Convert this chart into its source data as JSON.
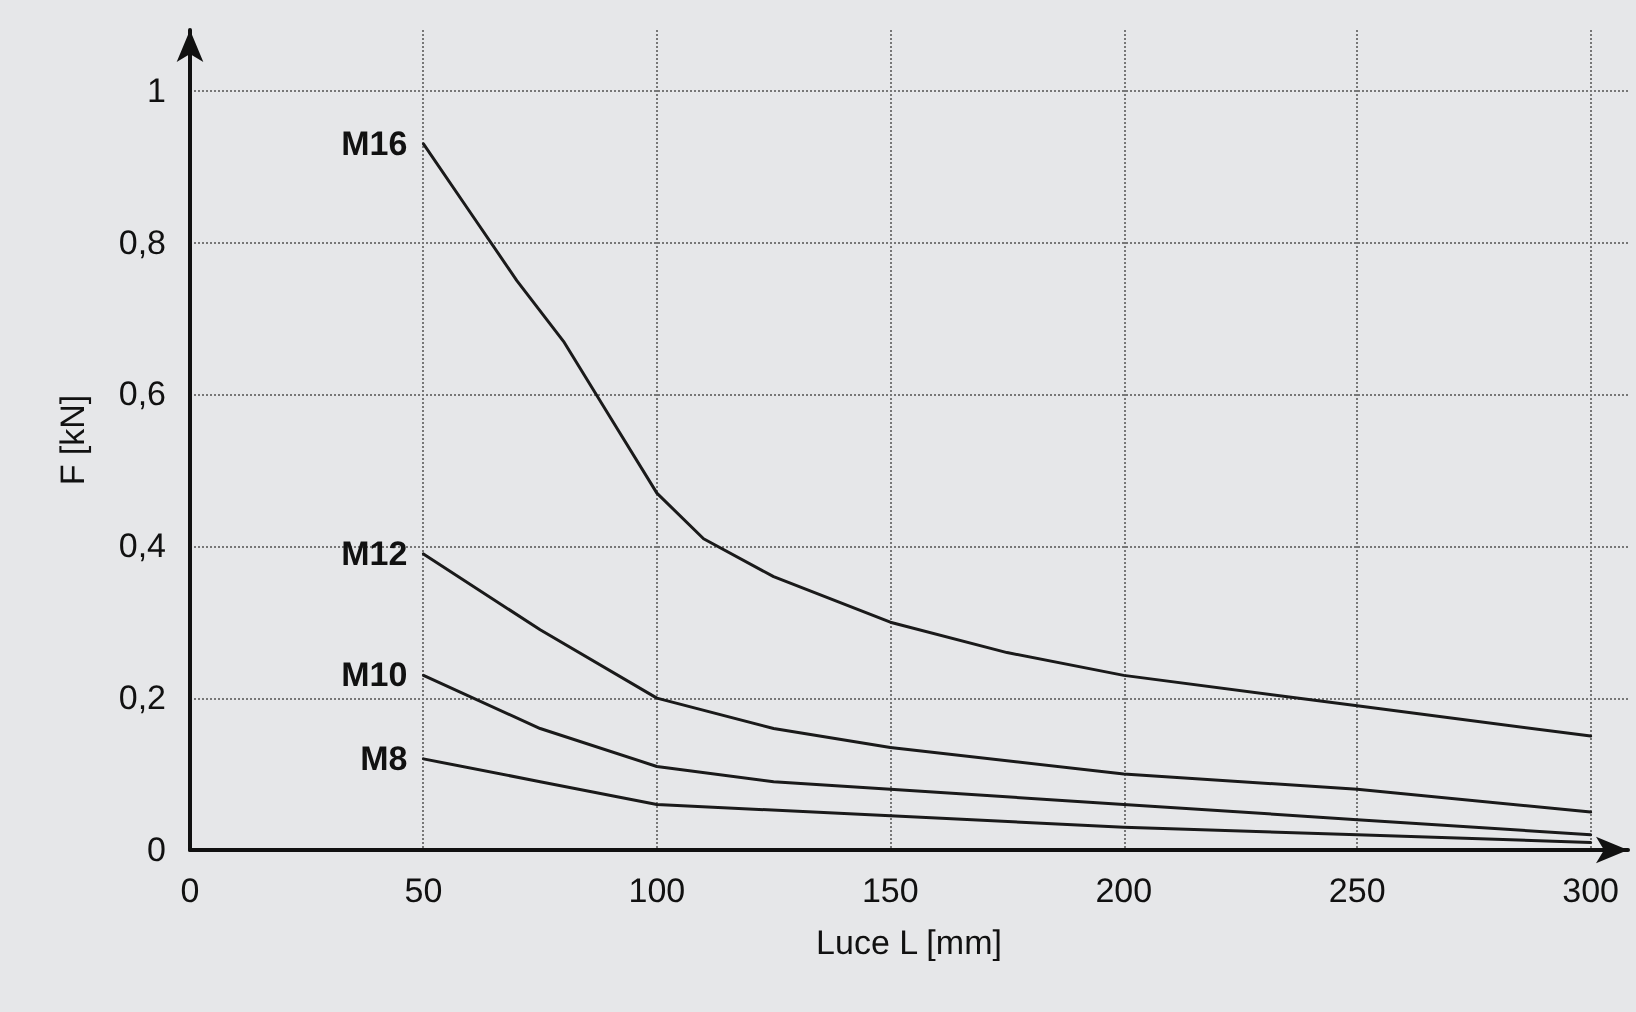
{
  "chart_data": {
    "type": "line",
    "xlabel": "Luce L [mm]",
    "ylabel": "F [kN]",
    "xlim": [
      0,
      308
    ],
    "ylim": [
      0,
      1.08
    ],
    "xticks": [
      0,
      50,
      100,
      150,
      200,
      250,
      300
    ],
    "yticks": [
      {
        "value": 0,
        "label": "0"
      },
      {
        "value": 0.2,
        "label": "0,2"
      },
      {
        "value": 0.4,
        "label": "0,4"
      },
      {
        "value": 0.6,
        "label": "0,6"
      },
      {
        "value": 0.8,
        "label": "0,8"
      },
      {
        "value": 1,
        "label": "1"
      }
    ],
    "grid": true,
    "legend": false,
    "marker": "none",
    "line_style": "solid",
    "series": [
      {
        "name": "M16",
        "color": "#1a1a1a",
        "x": [
          50,
          60,
          70,
          80,
          90,
          100,
          110,
          125,
          150,
          175,
          200,
          250,
          300
        ],
        "values": [
          0.93,
          0.84,
          0.75,
          0.67,
          0.57,
          0.47,
          0.41,
          0.36,
          0.3,
          0.26,
          0.23,
          0.19,
          0.15
        ]
      },
      {
        "name": "M12",
        "color": "#1a1a1a",
        "x": [
          50,
          75,
          100,
          125,
          150,
          200,
          250,
          300
        ],
        "values": [
          0.39,
          0.29,
          0.2,
          0.16,
          0.135,
          0.1,
          0.08,
          0.05
        ]
      },
      {
        "name": "M10",
        "color": "#1a1a1a",
        "x": [
          50,
          75,
          100,
          125,
          150,
          200,
          250,
          300
        ],
        "values": [
          0.23,
          0.16,
          0.11,
          0.09,
          0.08,
          0.06,
          0.04,
          0.02
        ]
      },
      {
        "name": "M8",
        "color": "#1a1a1a",
        "x": [
          50,
          75,
          100,
          150,
          200,
          250,
          300
        ],
        "values": [
          0.12,
          0.09,
          0.06,
          0.045,
          0.03,
          0.02,
          0.01
        ]
      }
    ]
  }
}
